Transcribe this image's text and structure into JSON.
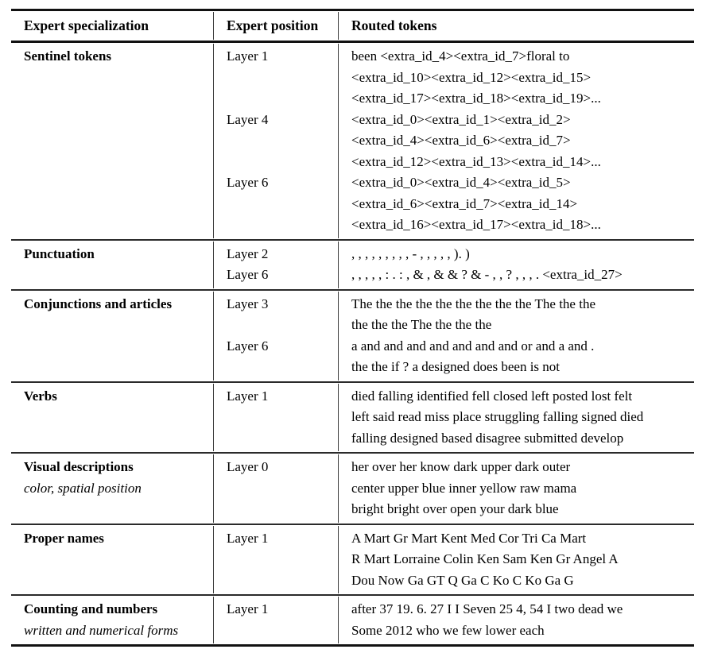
{
  "table": {
    "header": {
      "specialization": "Expert specialization",
      "position": "Expert position",
      "tokens": "Routed tokens"
    },
    "sections": [
      {
        "name": "Sentinel tokens",
        "subtitle": "",
        "entries": [
          {
            "layer": "Layer 1",
            "lines": [
              "been <extra_id_4><extra_id_7>floral to",
              "<extra_id_10><extra_id_12><extra_id_15>",
              "<extra_id_17><extra_id_18><extra_id_19>..."
            ]
          },
          {
            "layer": "Layer 4",
            "lines": [
              "<extra_id_0><extra_id_1><extra_id_2>",
              "<extra_id_4><extra_id_6><extra_id_7>",
              "<extra_id_12><extra_id_13><extra_id_14>..."
            ]
          },
          {
            "layer": "Layer 6",
            "lines": [
              "<extra_id_0><extra_id_4><extra_id_5>",
              "<extra_id_6><extra_id_7><extra_id_14>",
              "<extra_id_16><extra_id_17><extra_id_18>..."
            ]
          }
        ]
      },
      {
        "name": "Punctuation",
        "subtitle": "",
        "entries": [
          {
            "layer": "Layer 2",
            "lines": [
              ", , , , , , , , , - , , , , , ). )"
            ]
          },
          {
            "layer": "Layer 6",
            "lines": [
              ", , , , , : . : , & , & & ? & - , , ? , , , . <extra_id_27>"
            ]
          }
        ]
      },
      {
        "name": "Conjunctions and articles",
        "subtitle": "",
        "entries": [
          {
            "layer": "Layer 3",
            "lines": [
              "The the the the the the the the the The the the",
              "the the the The the the the"
            ]
          },
          {
            "layer": "Layer 6",
            "lines": [
              "a and and and and and and and or and a and .",
              "the the if ? a designed does been is not"
            ]
          }
        ]
      },
      {
        "name": "Verbs",
        "subtitle": "",
        "entries": [
          {
            "layer": "Layer 1",
            "lines": [
              "died falling identified fell closed left posted lost felt",
              "left said read miss place struggling falling signed died",
              "falling designed based disagree submitted develop"
            ]
          }
        ]
      },
      {
        "name": "Visual descriptions",
        "subtitle": "color, spatial position",
        "entries": [
          {
            "layer": "Layer 0",
            "lines": [
              "her over her know dark upper dark outer",
              "center upper blue inner yellow raw mama",
              "bright bright over open your dark blue"
            ]
          }
        ]
      },
      {
        "name": "Proper names",
        "subtitle": "",
        "entries": [
          {
            "layer": "Layer 1",
            "lines": [
              "A Mart Gr Mart Kent Med Cor Tri Ca Mart",
              "R Mart Lorraine Colin Ken Sam Ken Gr Angel A",
              "Dou Now Ga GT Q Ga C Ko C Ko Ga G"
            ]
          }
        ]
      },
      {
        "name": "Counting and numbers",
        "subtitle": "written and numerical forms",
        "entries": [
          {
            "layer": "Layer 1",
            "lines": [
              "after 37 19. 6. 27 I I Seven 25 4, 54 I two dead we",
              "Some 2012 who we few lower each"
            ]
          }
        ]
      }
    ]
  },
  "colors": {
    "background": "#ffffff",
    "text": "#000000",
    "rule_heavy": "#111111",
    "rule_light": "#2a2a2a"
  }
}
